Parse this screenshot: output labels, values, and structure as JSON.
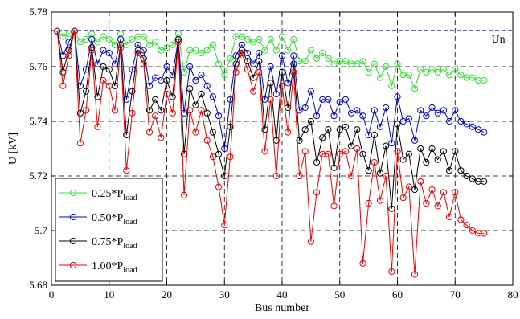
{
  "chart_data": {
    "type": "line",
    "title": "",
    "xlabel": "Bus number",
    "ylabel": "U [kV]",
    "xlim": [
      0,
      80
    ],
    "ylim": [
      5.68,
      5.78
    ],
    "xticks": [
      0,
      10,
      20,
      30,
      40,
      50,
      60,
      70,
      80
    ],
    "yticks": [
      5.68,
      5.7,
      5.72,
      5.74,
      5.76,
      5.78
    ],
    "xtick_labels": [
      "0",
      "10",
      "20",
      "30",
      "40",
      "50",
      "60",
      "70",
      "80"
    ],
    "ytick_labels": [
      "5.68",
      "5.7",
      "5.72",
      "5.74",
      "5.76",
      "5.78"
    ],
    "grid": "dashed",
    "legend_position": "bottom-left",
    "x": [
      1,
      2,
      3,
      4,
      5,
      6,
      7,
      8,
      9,
      10,
      11,
      12,
      13,
      14,
      15,
      16,
      17,
      18,
      19,
      20,
      21,
      22,
      23,
      24,
      25,
      26,
      27,
      28,
      29,
      30,
      31,
      32,
      33,
      34,
      35,
      36,
      37,
      38,
      39,
      40,
      41,
      42,
      43,
      44,
      45,
      46,
      47,
      48,
      49,
      50,
      51,
      52,
      53,
      54,
      55,
      56,
      57,
      58,
      59,
      60,
      61,
      62,
      63,
      64,
      65,
      66,
      67,
      68,
      69,
      70,
      71,
      72,
      73,
      74,
      75
    ],
    "reference_line": {
      "label": "Un",
      "value": 5.7732,
      "color": "#0000cc"
    },
    "series": [
      {
        "legend_prefix": "0.25*P",
        "legend_sub": "load",
        "color": "#33dd33",
        "values": [
          5.773,
          5.771,
          5.772,
          5.773,
          5.769,
          5.77,
          5.772,
          5.769,
          5.771,
          5.77,
          5.768,
          5.772,
          5.768,
          5.77,
          5.771,
          5.771,
          5.768,
          5.769,
          5.766,
          5.767,
          5.768,
          5.772,
          5.758,
          5.766,
          5.766,
          5.765,
          5.766,
          5.768,
          5.761,
          5.757,
          5.763,
          5.771,
          5.771,
          5.77,
          5.769,
          5.77,
          5.766,
          5.77,
          5.766,
          5.771,
          5.766,
          5.77,
          5.762,
          5.762,
          5.766,
          5.763,
          5.765,
          5.763,
          5.761,
          5.762,
          5.762,
          5.761,
          5.761,
          5.762,
          5.758,
          5.761,
          5.756,
          5.76,
          5.753,
          5.761,
          5.757,
          5.757,
          5.752,
          5.759,
          5.758,
          5.759,
          5.758,
          5.759,
          5.757,
          5.759,
          5.757,
          5.756,
          5.756,
          5.755,
          5.755
        ]
      },
      {
        "legend_prefix": "0.50*P",
        "legend_sub": "load",
        "color": "#0000cc",
        "values": [
          5.773,
          5.764,
          5.769,
          5.773,
          5.753,
          5.759,
          5.77,
          5.761,
          5.766,
          5.765,
          5.761,
          5.77,
          5.748,
          5.759,
          5.768,
          5.766,
          5.753,
          5.756,
          5.755,
          5.76,
          5.757,
          5.77,
          5.743,
          5.76,
          5.755,
          5.757,
          5.753,
          5.749,
          5.742,
          5.73,
          5.748,
          5.764,
          5.768,
          5.765,
          5.761,
          5.765,
          5.748,
          5.76,
          5.75,
          5.764,
          5.754,
          5.764,
          5.744,
          5.745,
          5.751,
          5.742,
          5.748,
          5.748,
          5.742,
          5.747,
          5.748,
          5.743,
          5.744,
          5.742,
          5.735,
          5.744,
          5.738,
          5.745,
          5.732,
          5.749,
          5.74,
          5.741,
          5.733,
          5.744,
          5.742,
          5.745,
          5.743,
          5.744,
          5.74,
          5.744,
          5.74,
          5.739,
          5.738,
          5.737,
          5.736
        ]
      },
      {
        "legend_prefix": "0.75*P",
        "legend_sub": "load",
        "color": "#000000",
        "values": [
          5.773,
          5.758,
          5.766,
          5.773,
          5.743,
          5.751,
          5.767,
          5.749,
          5.76,
          5.759,
          5.753,
          5.768,
          5.735,
          5.751,
          5.766,
          5.763,
          5.744,
          5.748,
          5.744,
          5.755,
          5.749,
          5.77,
          5.728,
          5.752,
          5.746,
          5.75,
          5.743,
          5.736,
          5.728,
          5.72,
          5.738,
          5.761,
          5.766,
          5.762,
          5.756,
          5.762,
          5.737,
          5.754,
          5.733,
          5.758,
          5.745,
          5.761,
          5.733,
          5.737,
          5.74,
          5.725,
          5.734,
          5.737,
          5.723,
          5.737,
          5.738,
          5.731,
          5.737,
          5.728,
          5.722,
          5.735,
          5.721,
          5.731,
          5.708,
          5.739,
          5.726,
          5.728,
          5.715,
          5.73,
          5.725,
          5.73,
          5.726,
          5.729,
          5.722,
          5.729,
          5.722,
          5.72,
          5.719,
          5.718,
          5.718
        ]
      },
      {
        "legend_prefix": "1.00*P",
        "legend_sub": "load",
        "color": "#ee0000",
        "values": [
          5.773,
          5.753,
          5.764,
          5.773,
          5.732,
          5.744,
          5.766,
          5.738,
          5.755,
          5.753,
          5.744,
          5.767,
          5.722,
          5.743,
          5.765,
          5.761,
          5.736,
          5.742,
          5.734,
          5.75,
          5.743,
          5.769,
          5.713,
          5.744,
          5.736,
          5.744,
          5.733,
          5.727,
          5.716,
          5.702,
          5.727,
          5.758,
          5.765,
          5.759,
          5.751,
          5.758,
          5.729,
          5.748,
          5.72,
          5.753,
          5.736,
          5.758,
          5.72,
          5.729,
          5.696,
          5.714,
          5.728,
          5.728,
          5.709,
          5.728,
          5.729,
          5.72,
          5.73,
          5.688,
          5.71,
          5.725,
          5.711,
          5.72,
          5.685,
          5.729,
          5.712,
          5.716,
          5.684,
          5.718,
          5.71,
          5.715,
          5.709,
          5.714,
          5.705,
          5.714,
          5.704,
          5.702,
          5.7,
          5.699,
          5.699
        ]
      }
    ]
  }
}
